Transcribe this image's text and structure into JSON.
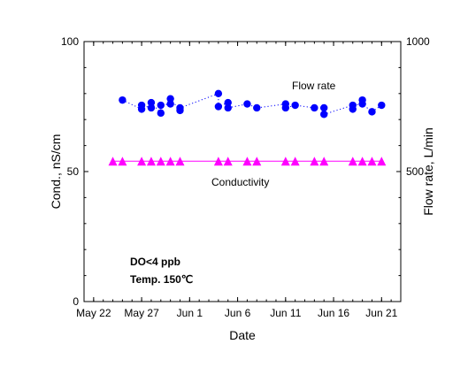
{
  "chart_data": {
    "type": "scatter",
    "title": "",
    "xlabel": "Date",
    "ylabel_left": "Cond., nS/cm",
    "ylabel_right": "Flow rate, L/min",
    "x_range": [
      "2022-05-21",
      "2022-06-23"
    ],
    "x_ticks": [
      {
        "date": "2022-05-22",
        "label": "May 22"
      },
      {
        "date": "2022-05-27",
        "label": "May 27"
      },
      {
        "date": "2022-06-01",
        "label": "Jun 1"
      },
      {
        "date": "2022-06-06",
        "label": "Jun 6"
      },
      {
        "date": "2022-06-11",
        "label": "Jun 11"
      },
      {
        "date": "2022-06-16",
        "label": "Jun 16"
      },
      {
        "date": "2022-06-21",
        "label": "Jun 21"
      }
    ],
    "y_left": {
      "min": 0,
      "max": 100,
      "ticks": [
        0,
        50,
        100
      ]
    },
    "y_right": {
      "min": 0,
      "max": 1000,
      "ticks": [
        500,
        1000
      ]
    },
    "grid": false,
    "series": [
      {
        "name": "Flow rate",
        "axis": "right",
        "marker": "circle",
        "line": "dotted",
        "color": "#0000FF",
        "points": [
          {
            "x": "2022-05-25",
            "y": 775
          },
          {
            "x": "2022-05-27",
            "y": 740
          },
          {
            "x": "2022-05-27",
            "y": 755
          },
          {
            "x": "2022-05-28",
            "y": 745
          },
          {
            "x": "2022-05-28",
            "y": 765
          },
          {
            "x": "2022-05-29",
            "y": 725
          },
          {
            "x": "2022-05-29",
            "y": 755
          },
          {
            "x": "2022-05-30",
            "y": 760
          },
          {
            "x": "2022-05-30",
            "y": 780
          },
          {
            "x": "2022-05-31",
            "y": 735
          },
          {
            "x": "2022-05-31",
            "y": 745
          },
          {
            "x": "2022-06-04",
            "y": 800
          },
          {
            "x": "2022-06-04",
            "y": 750
          },
          {
            "x": "2022-06-05",
            "y": 765
          },
          {
            "x": "2022-06-05",
            "y": 745
          },
          {
            "x": "2022-06-07",
            "y": 760
          },
          {
            "x": "2022-06-08",
            "y": 745
          },
          {
            "x": "2022-06-11",
            "y": 760
          },
          {
            "x": "2022-06-11",
            "y": 745
          },
          {
            "x": "2022-06-12",
            "y": 755
          },
          {
            "x": "2022-06-14",
            "y": 745
          },
          {
            "x": "2022-06-15",
            "y": 745
          },
          {
            "x": "2022-06-15",
            "y": 720
          },
          {
            "x": "2022-06-18",
            "y": 755
          },
          {
            "x": "2022-06-18",
            "y": 740
          },
          {
            "x": "2022-06-19",
            "y": 775
          },
          {
            "x": "2022-06-19",
            "y": 760
          },
          {
            "x": "2022-06-20",
            "y": 730
          },
          {
            "x": "2022-06-21",
            "y": 755
          }
        ]
      },
      {
        "name": "Conductivity",
        "axis": "left",
        "marker": "triangle",
        "line": "solid",
        "color": "#FF00FF",
        "points": [
          {
            "x": "2022-05-24",
            "y": 54
          },
          {
            "x": "2022-05-25",
            "y": 54
          },
          {
            "x": "2022-05-27",
            "y": 54
          },
          {
            "x": "2022-05-28",
            "y": 54
          },
          {
            "x": "2022-05-29",
            "y": 54
          },
          {
            "x": "2022-05-30",
            "y": 54
          },
          {
            "x": "2022-05-31",
            "y": 54
          },
          {
            "x": "2022-06-04",
            "y": 54
          },
          {
            "x": "2022-06-05",
            "y": 54
          },
          {
            "x": "2022-06-07",
            "y": 54
          },
          {
            "x": "2022-06-08",
            "y": 54
          },
          {
            "x": "2022-06-11",
            "y": 54
          },
          {
            "x": "2022-06-12",
            "y": 54
          },
          {
            "x": "2022-06-14",
            "y": 54
          },
          {
            "x": "2022-06-15",
            "y": 54
          },
          {
            "x": "2022-06-18",
            "y": 54
          },
          {
            "x": "2022-06-19",
            "y": 54
          },
          {
            "x": "2022-06-20",
            "y": 54
          },
          {
            "x": "2022-06-21",
            "y": 54
          }
        ]
      }
    ],
    "annotations": [
      "DO<4 ppb",
      "Temp. 150℃"
    ]
  }
}
